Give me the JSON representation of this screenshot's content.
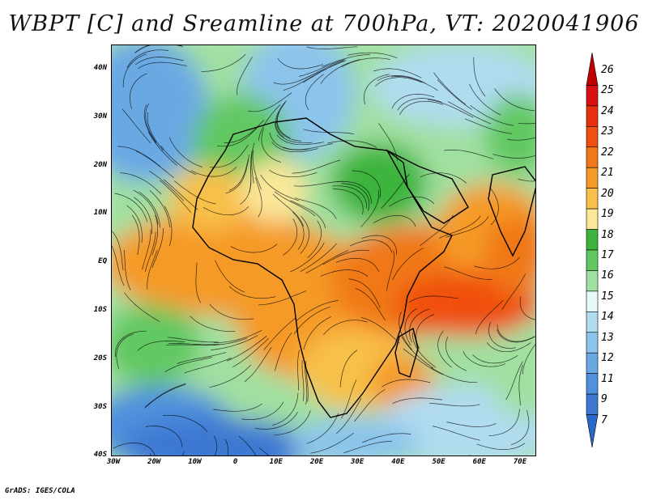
{
  "title": "WBPT [C] and Sreamline at 700hPa, VT: 2020041906",
  "credit": "GrADS: IGES/COLA",
  "lat_labels": [
    "40N",
    "30N",
    "20N",
    "10N",
    "EQ",
    "10S",
    "20S",
    "30S",
    "40S"
  ],
  "lon_labels": [
    "30W",
    "20W",
    "10W",
    "0",
    "10E",
    "20E",
    "30E",
    "40E",
    "50E",
    "60E",
    "70E"
  ],
  "colorbar": {
    "labels": [
      "26",
      "25",
      "24",
      "23",
      "22",
      "21",
      "20",
      "19",
      "18",
      "17",
      "16",
      "15",
      "14",
      "13",
      "12",
      "11",
      "9",
      "7"
    ],
    "colors": [
      "#c00000",
      "#d81010",
      "#e83010",
      "#f05010",
      "#f07818",
      "#f59a28",
      "#f8c048",
      "#fbe79a",
      "#3cb43c",
      "#62c862",
      "#a0e0a0",
      "#e6f8f8",
      "#b0dcf0",
      "#8cc4ec",
      "#6aa8e4",
      "#5090dc",
      "#3c78d2",
      "#2868c8"
    ]
  }
}
